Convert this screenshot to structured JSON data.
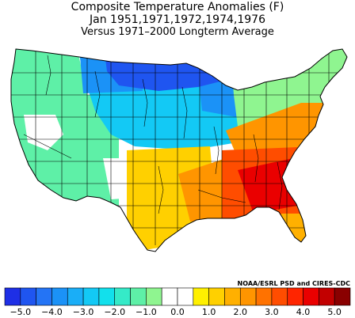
{
  "title": {
    "line1": "Composite Temperature Anomalies (F)",
    "line2": "Jan   1951,1971,1972,1974,1976",
    "line3": "Versus 1971–2000 Longterm Average"
  },
  "credit": "NOAA/ESRL PSD and CIRES-CDC",
  "colorbar": {
    "bins": [
      {
        "from": -5.5,
        "to": -5.0,
        "color": "#1e2fe6"
      },
      {
        "from": -5.0,
        "to": -4.5,
        "color": "#1f55f0"
      },
      {
        "from": -4.5,
        "to": -4.0,
        "color": "#2474f5"
      },
      {
        "from": -4.0,
        "to": -3.5,
        "color": "#1b92f7"
      },
      {
        "from": -3.5,
        "to": -3.0,
        "color": "#1aaef7"
      },
      {
        "from": -3.0,
        "to": -2.5,
        "color": "#13c9f5"
      },
      {
        "from": -2.5,
        "to": -2.0,
        "color": "#12e0ec"
      },
      {
        "from": -2.0,
        "to": -1.5,
        "color": "#35eac8"
      },
      {
        "from": -1.5,
        "to": -1.0,
        "color": "#5ef0a7"
      },
      {
        "from": -1.0,
        "to": -0.5,
        "color": "#8ff590"
      },
      {
        "from": -0.5,
        "to": 0.0,
        "color": "#ffffff"
      },
      {
        "from": 0.0,
        "to": 0.5,
        "color": "#ffffff"
      },
      {
        "from": 0.5,
        "to": 1.0,
        "color": "#fff000"
      },
      {
        "from": 1.0,
        "to": 1.5,
        "color": "#ffd000"
      },
      {
        "from": 1.5,
        "to": 2.0,
        "color": "#ffb000"
      },
      {
        "from": 2.0,
        "to": 2.5,
        "color": "#ff9500"
      },
      {
        "from": 2.5,
        "to": 3.0,
        "color": "#ff7200"
      },
      {
        "from": 3.0,
        "to": 3.5,
        "color": "#ff4d00"
      },
      {
        "from": 3.5,
        "to": 4.0,
        "color": "#ff2500"
      },
      {
        "from": 4.0,
        "to": 4.5,
        "color": "#ea0000"
      },
      {
        "from": 4.5,
        "to": 5.0,
        "color": "#c20000"
      },
      {
        "from": 5.0,
        "to": 5.5,
        "color": "#8a0000"
      }
    ],
    "ticks": [
      {
        "value": -5.0,
        "label": "−5.0"
      },
      {
        "value": -4.0,
        "label": "−4.0"
      },
      {
        "value": -3.0,
        "label": "−3.0"
      },
      {
        "value": -2.0,
        "label": "−2.0"
      },
      {
        "value": -1.0,
        "label": "−1.0"
      },
      {
        "value": 0.0,
        "label": "0.0"
      },
      {
        "value": 1.0,
        "label": "1.0"
      },
      {
        "value": 2.0,
        "label": "2.0"
      },
      {
        "value": 3.0,
        "label": "3.0"
      },
      {
        "value": 4.0,
        "label": "4.0"
      },
      {
        "value": 5.0,
        "label": "5.0"
      }
    ]
  },
  "map": {
    "region": "contiguous United States climate divisions",
    "line_color": "#000000",
    "regions": [
      {
        "name": "northern-plains-upper-midwest",
        "color": "#1f55f0"
      },
      {
        "name": "upper-great-lakes",
        "color": "#1b92f7"
      },
      {
        "name": "northern-rockies-central-plains",
        "color": "#13c9f5"
      },
      {
        "name": "pacific-northwest",
        "color": "#5ef0a7"
      },
      {
        "name": "california-great-basin",
        "color": "#5ef0a7"
      },
      {
        "name": "ohio-valley-northeast",
        "color": "#8ff590"
      },
      {
        "name": "southern-plains",
        "color": "#ffd000"
      },
      {
        "name": "mid-south-mid-atlantic",
        "color": "#ff9500"
      },
      {
        "name": "southeast",
        "color": "#ff4d00"
      },
      {
        "name": "georgia-carolinas-core",
        "color": "#ea0000"
      },
      {
        "name": "florida-peninsula",
        "color": "#ffb000"
      },
      {
        "name": "neutral-areas",
        "color": "#ffffff"
      }
    ]
  }
}
